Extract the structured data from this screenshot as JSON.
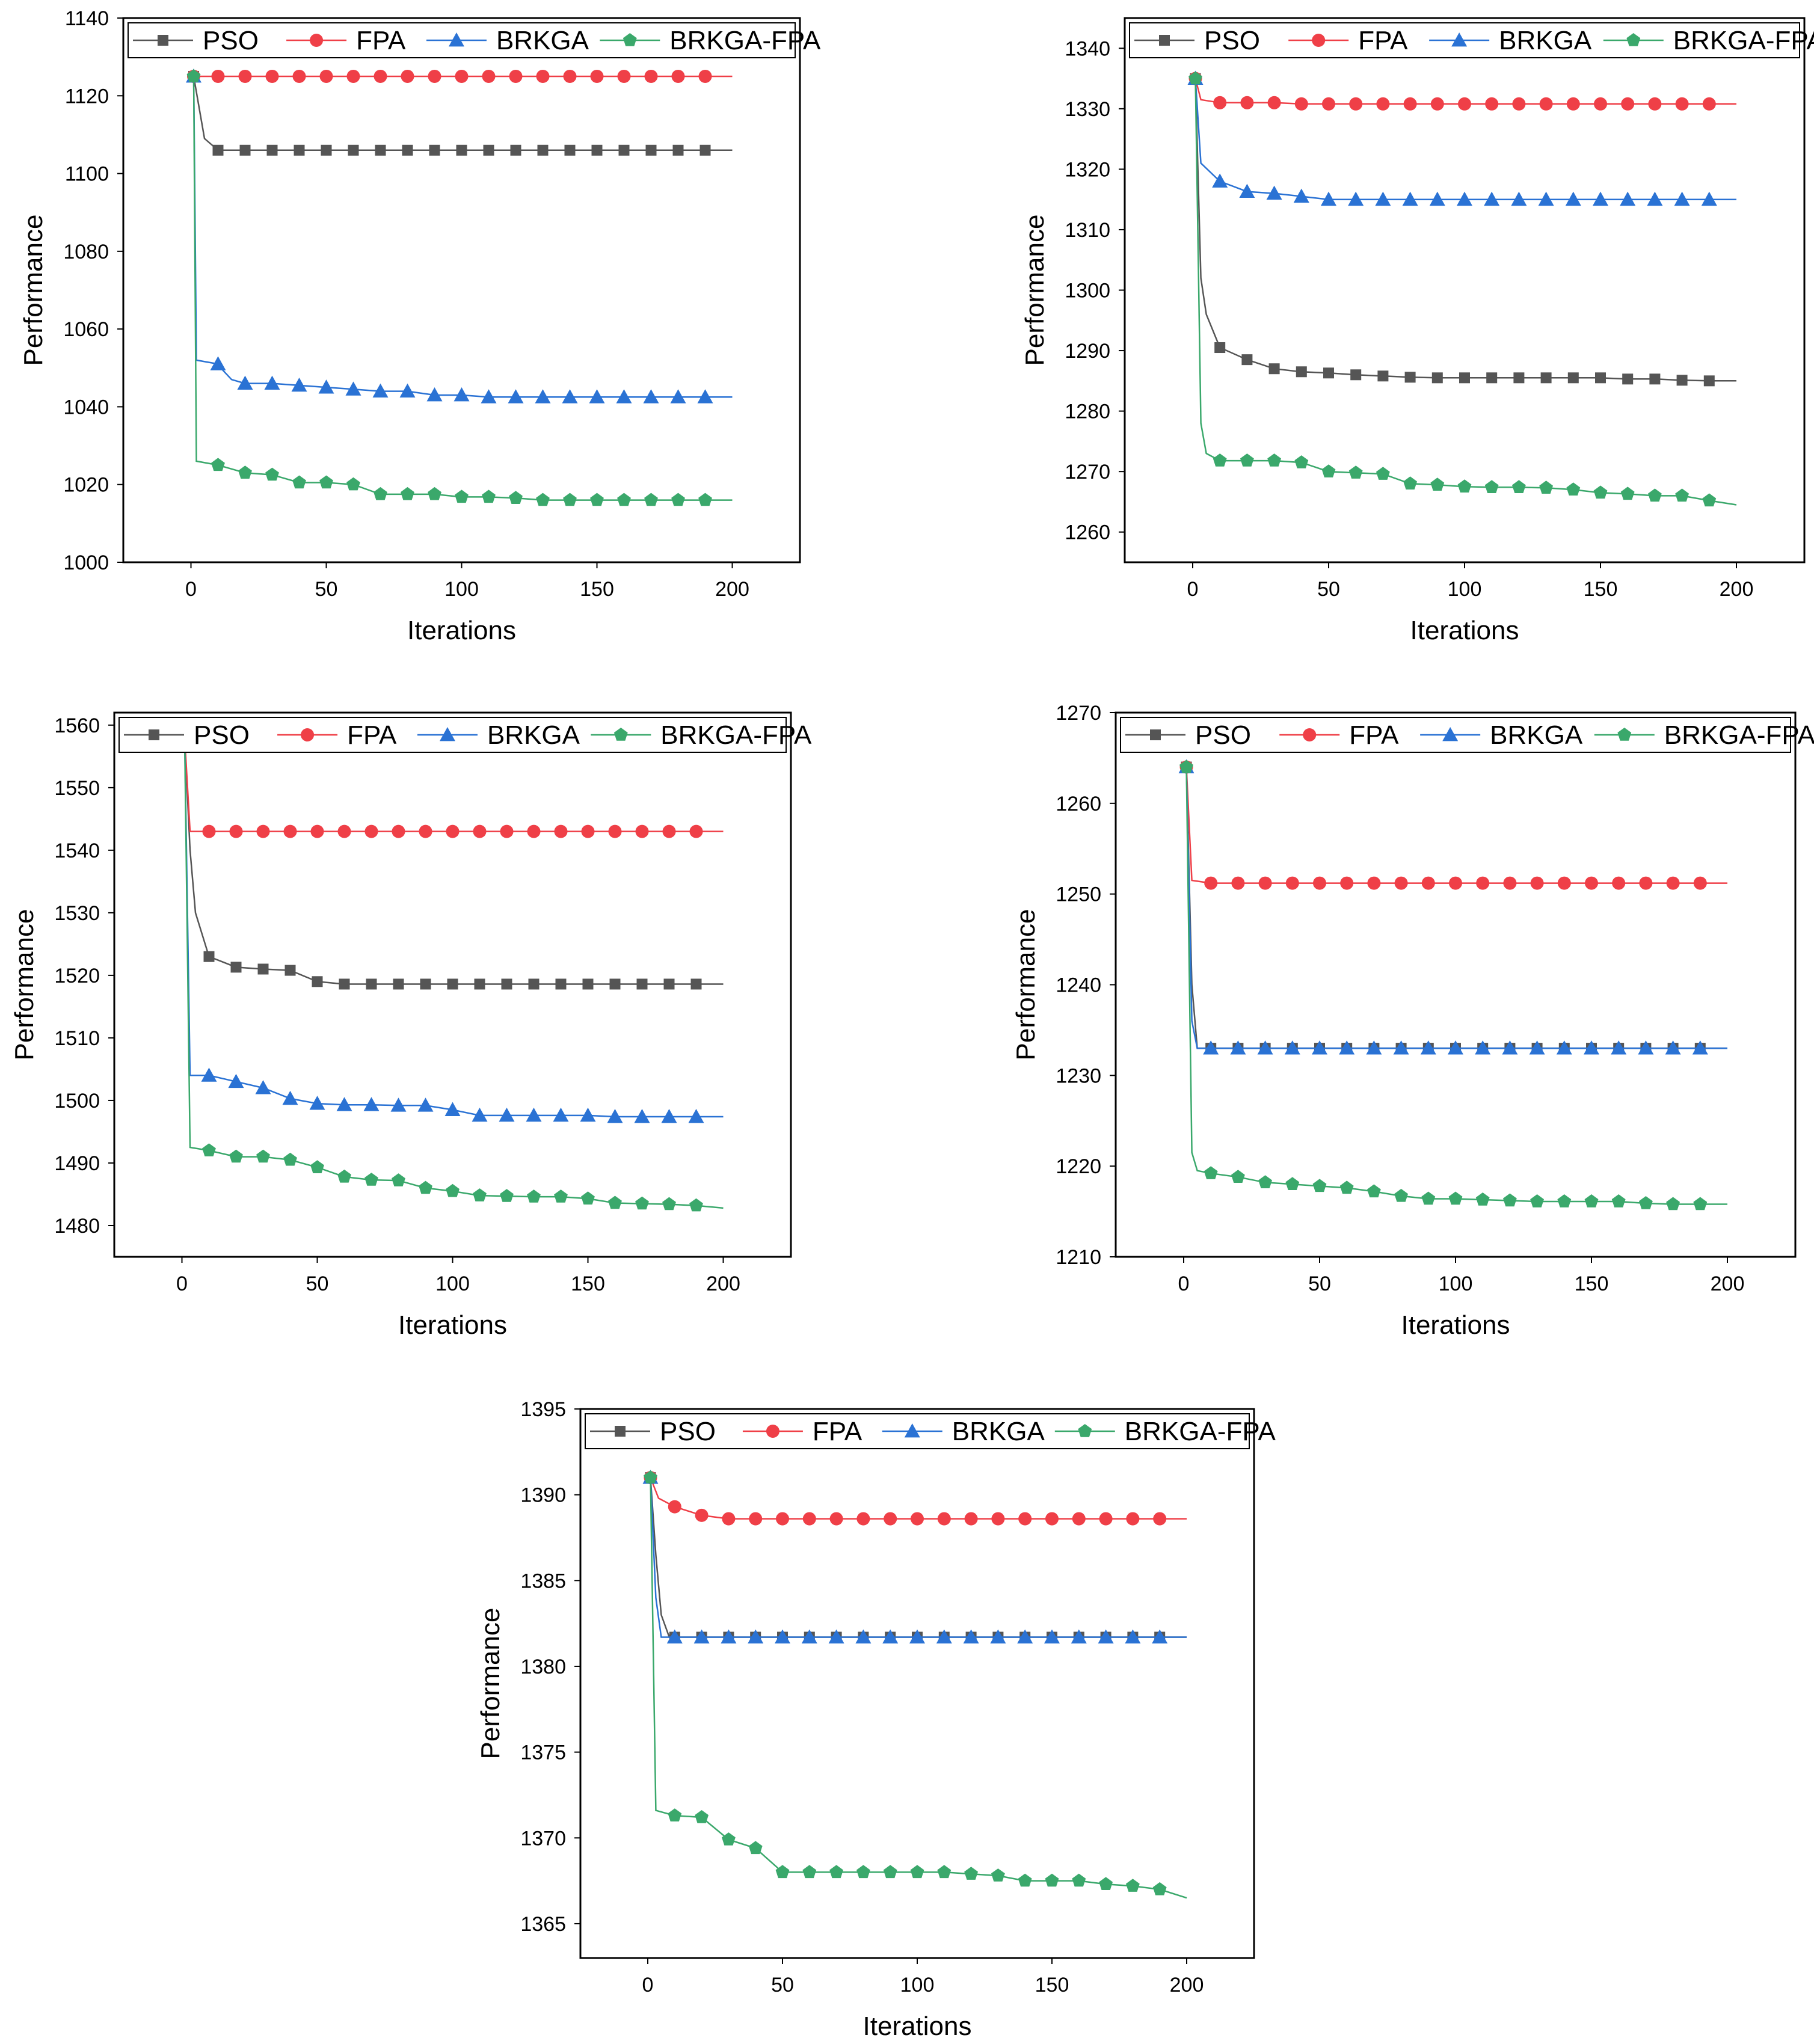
{
  "series_styles": [
    {
      "name": "PSO",
      "color": "#555555",
      "marker": "square"
    },
    {
      "name": "FPA",
      "color": "#ef3f47",
      "marker": "circle"
    },
    {
      "name": "BRKGA",
      "color": "#2a72d4",
      "marker": "triangle"
    },
    {
      "name": "BRKGA-FPA",
      "color": "#3aa86b",
      "marker": "pentagon"
    }
  ],
  "chart_data": [
    {
      "type": "line",
      "title": "",
      "xlabel": "Iterations",
      "ylabel": "Performance",
      "xlim": [
        -25,
        225
      ],
      "ylim": [
        1000,
        1140
      ],
      "xticks": [
        0,
        50,
        100,
        150,
        200
      ],
      "yticks": [
        1000,
        1020,
        1040,
        1060,
        1080,
        1100,
        1120,
        1140
      ],
      "legend": "top",
      "series": [
        {
          "name": "PSO",
          "x": [
            1,
            5,
            10,
            200
          ],
          "y": [
            1125,
            1109,
            1106,
            1106
          ]
        },
        {
          "name": "FPA",
          "x": [
            1,
            5,
            10,
            200
          ],
          "y": [
            1125,
            1125,
            1125,
            1125
          ]
        },
        {
          "name": "BRKGA",
          "x": [
            1,
            2,
            10,
            11,
            15,
            20,
            30,
            40,
            50,
            60,
            70,
            80,
            90,
            100,
            110,
            120,
            130,
            140,
            150,
            160,
            170,
            180,
            190,
            200
          ],
          "y": [
            1125,
            1052,
            1051,
            1050,
            1047,
            1046,
            1046,
            1045.5,
            1045,
            1044.5,
            1044,
            1044,
            1043,
            1043,
            1042.5,
            1042.5,
            1042.5,
            1042.5,
            1042.5,
            1042.5,
            1042.5,
            1042.5,
            1042.5,
            1042.5
          ]
        },
        {
          "name": "BRKGA-FPA",
          "x": [
            1,
            2,
            10,
            20,
            30,
            40,
            50,
            60,
            70,
            80,
            90,
            100,
            110,
            120,
            130,
            140,
            150,
            160,
            170,
            180,
            190,
            200
          ],
          "y": [
            1125,
            1026,
            1025,
            1023,
            1022.5,
            1020.5,
            1020.5,
            1020,
            1017.5,
            1017.5,
            1017.5,
            1016.8,
            1016.8,
            1016.5,
            1016,
            1016,
            1016,
            1016,
            1016,
            1016,
            1016,
            1016
          ]
        }
      ]
    },
    {
      "type": "line",
      "title": "",
      "xlabel": "Iterations",
      "ylabel": "Performance",
      "xlim": [
        -25,
        225
      ],
      "ylim": [
        1255,
        1345
      ],
      "xticks": [
        0,
        50,
        100,
        150,
        200
      ],
      "yticks": [
        1260,
        1270,
        1280,
        1290,
        1300,
        1310,
        1320,
        1330,
        1340
      ],
      "legend": "top",
      "series": [
        {
          "name": "PSO",
          "x": [
            1,
            3,
            5,
            10,
            20,
            30,
            40,
            50,
            60,
            70,
            80,
            90,
            100,
            110,
            120,
            130,
            140,
            150,
            160,
            170,
            180,
            190,
            200
          ],
          "y": [
            1335,
            1302,
            1296,
            1290.5,
            1288.5,
            1287,
            1286.5,
            1286.3,
            1286,
            1285.8,
            1285.6,
            1285.5,
            1285.5,
            1285.5,
            1285.5,
            1285.5,
            1285.5,
            1285.5,
            1285.3,
            1285.3,
            1285.1,
            1285,
            1285
          ]
        },
        {
          "name": "FPA",
          "x": [
            1,
            3,
            10,
            20,
            30,
            40,
            200
          ],
          "y": [
            1335,
            1331.5,
            1331,
            1331,
            1331,
            1330.8,
            1330.8
          ]
        },
        {
          "name": "BRKGA",
          "x": [
            1,
            3,
            10,
            20,
            30,
            40,
            50,
            200
          ],
          "y": [
            1335,
            1321,
            1318,
            1316.3,
            1316,
            1315.5,
            1315,
            1315
          ]
        },
        {
          "name": "BRKGA-FPA",
          "x": [
            1,
            3,
            5,
            10,
            20,
            30,
            40,
            50,
            60,
            70,
            80,
            90,
            100,
            110,
            120,
            130,
            140,
            150,
            160,
            170,
            180,
            190,
            200
          ],
          "y": [
            1335,
            1278,
            1273,
            1271.8,
            1271.8,
            1271.8,
            1271.5,
            1270,
            1269.8,
            1269.6,
            1268,
            1267.8,
            1267.5,
            1267.4,
            1267.4,
            1267.3,
            1267,
            1266.5,
            1266.3,
            1266,
            1266,
            1265.2,
            1264.5
          ]
        }
      ]
    },
    {
      "type": "line",
      "title": "",
      "xlabel": "Iterations",
      "ylabel": "Performance",
      "xlim": [
        -25,
        225
      ],
      "ylim": [
        1475,
        1562
      ],
      "xticks": [
        0,
        50,
        100,
        150,
        200
      ],
      "yticks": [
        1480,
        1490,
        1500,
        1510,
        1520,
        1530,
        1540,
        1550,
        1560
      ],
      "legend": "top",
      "series": [
        {
          "name": "PSO",
          "x": [
            1,
            3,
            5,
            10,
            20,
            30,
            40,
            50,
            60,
            200
          ],
          "y": [
            1558,
            1540,
            1530,
            1523,
            1521.3,
            1521,
            1520.8,
            1519,
            1518.6,
            1518.6
          ]
        },
        {
          "name": "FPA",
          "x": [
            1,
            3,
            10,
            200
          ],
          "y": [
            1558,
            1543,
            1543,
            1543
          ]
        },
        {
          "name": "BRKGA",
          "x": [
            1,
            3,
            10,
            20,
            30,
            40,
            50,
            60,
            70,
            80,
            90,
            100,
            110,
            120,
            130,
            140,
            150,
            160,
            170,
            180,
            190,
            200
          ],
          "y": [
            1558,
            1504,
            1504,
            1503,
            1502,
            1500.3,
            1499.5,
            1499.3,
            1499.3,
            1499.2,
            1499.2,
            1498.5,
            1497.6,
            1497.6,
            1497.6,
            1497.6,
            1497.6,
            1497.4,
            1497.4,
            1497.4,
            1497.4,
            1497.4
          ]
        },
        {
          "name": "BRKGA-FPA",
          "x": [
            1,
            3,
            10,
            20,
            30,
            40,
            50,
            60,
            70,
            80,
            90,
            100,
            110,
            120,
            130,
            140,
            150,
            160,
            170,
            180,
            190,
            200
          ],
          "y": [
            1558,
            1492.5,
            1492,
            1491,
            1491,
            1490.5,
            1489.3,
            1487.8,
            1487.3,
            1487.2,
            1486,
            1485.5,
            1484.8,
            1484.7,
            1484.6,
            1484.6,
            1484.3,
            1483.6,
            1483.5,
            1483.4,
            1483.2,
            1482.8
          ]
        }
      ]
    },
    {
      "type": "line",
      "title": "",
      "xlabel": "Iterations",
      "ylabel": "Performance",
      "xlim": [
        -25,
        225
      ],
      "ylim": [
        1210,
        1270
      ],
      "xticks": [
        0,
        50,
        100,
        150,
        200
      ],
      "yticks": [
        1210,
        1220,
        1230,
        1240,
        1250,
        1260,
        1270
      ],
      "legend": "top",
      "series": [
        {
          "name": "PSO",
          "x": [
            1,
            3,
            5,
            10,
            200
          ],
          "y": [
            1264,
            1240,
            1233,
            1233,
            1233
          ]
        },
        {
          "name": "FPA",
          "x": [
            1,
            3,
            10,
            200
          ],
          "y": [
            1264,
            1251.5,
            1251.2,
            1251.2
          ]
        },
        {
          "name": "BRKGA",
          "x": [
            1,
            3,
            5,
            10,
            200
          ],
          "y": [
            1264,
            1236,
            1233,
            1233,
            1233
          ]
        },
        {
          "name": "BRKGA-FPA",
          "x": [
            1,
            3,
            5,
            10,
            20,
            30,
            40,
            50,
            60,
            70,
            80,
            90,
            100,
            110,
            120,
            130,
            140,
            150,
            160,
            170,
            180,
            190,
            200
          ],
          "y": [
            1264,
            1221.5,
            1219.5,
            1219.2,
            1218.8,
            1218.2,
            1218,
            1217.8,
            1217.6,
            1217.2,
            1216.7,
            1216.4,
            1216.4,
            1216.3,
            1216.2,
            1216.1,
            1216.1,
            1216.1,
            1216.1,
            1215.9,
            1215.8,
            1215.8,
            1215.8
          ]
        }
      ]
    },
    {
      "type": "line",
      "title": "",
      "xlabel": "Iterations",
      "ylabel": "Performance",
      "xlim": [
        -25,
        225
      ],
      "ylim": [
        1363,
        1395
      ],
      "xticks": [
        0,
        50,
        100,
        150,
        200
      ],
      "yticks": [
        1365,
        1370,
        1375,
        1380,
        1385,
        1390,
        1395
      ],
      "legend": "top",
      "series": [
        {
          "name": "PSO",
          "x": [
            1,
            3,
            5,
            8,
            200
          ],
          "y": [
            1391,
            1386.5,
            1383,
            1381.7,
            1381.7
          ]
        },
        {
          "name": "FPA",
          "x": [
            1,
            4,
            10,
            20,
            30,
            200
          ],
          "y": [
            1391,
            1389.8,
            1389.3,
            1388.8,
            1388.6,
            1388.6
          ]
        },
        {
          "name": "BRKGA",
          "x": [
            1,
            3,
            5,
            200
          ],
          "y": [
            1391,
            1384,
            1381.7,
            1381.7
          ]
        },
        {
          "name": "BRKGA-FPA",
          "x": [
            1,
            3,
            10,
            20,
            30,
            40,
            50,
            60,
            70,
            80,
            90,
            100,
            110,
            120,
            130,
            140,
            150,
            160,
            170,
            180,
            190,
            200
          ],
          "y": [
            1391,
            1371.6,
            1371.3,
            1371.2,
            1369.9,
            1369.4,
            1368,
            1368,
            1368,
            1368,
            1368,
            1368,
            1368,
            1367.9,
            1367.8,
            1367.5,
            1367.5,
            1367.5,
            1367.3,
            1367.2,
            1367,
            1366.5
          ]
        }
      ]
    }
  ]
}
